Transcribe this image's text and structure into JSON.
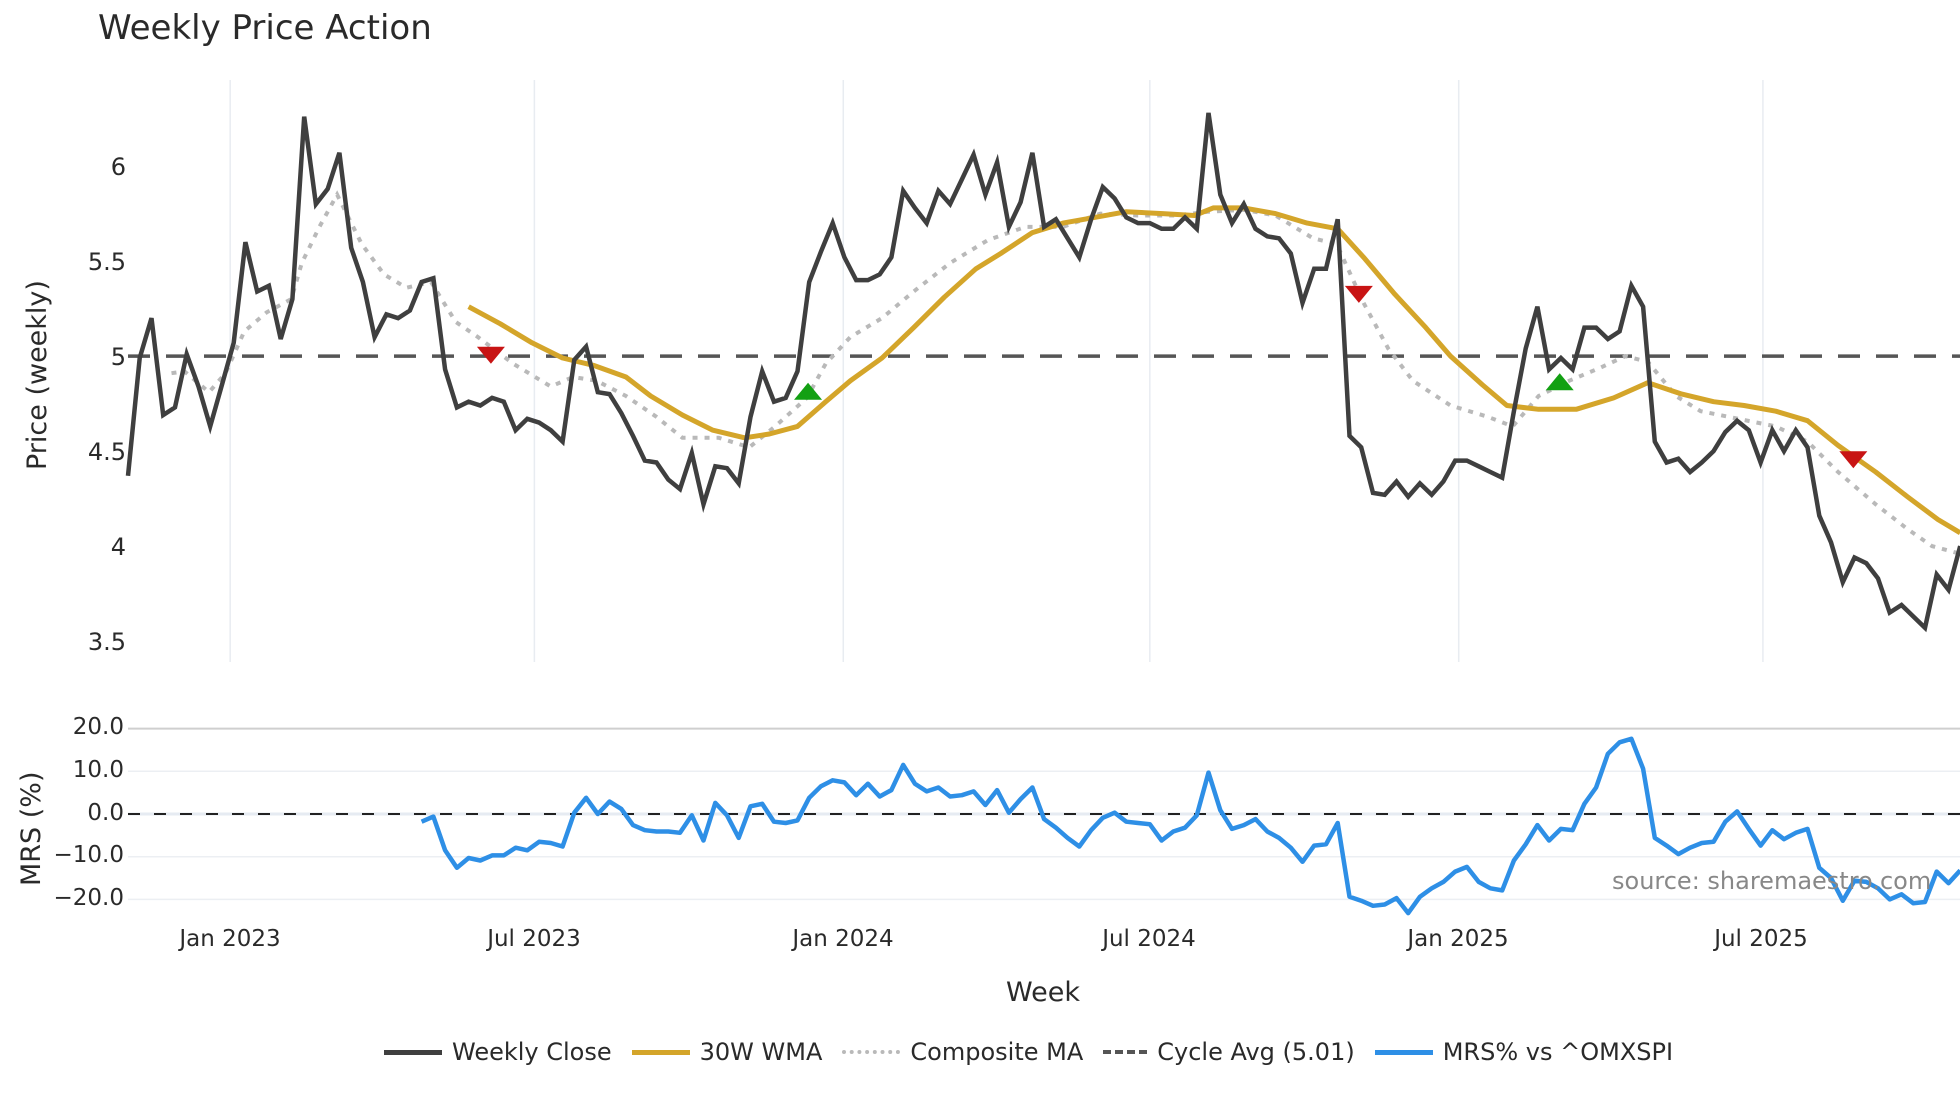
{
  "chart_data": {
    "type": "line",
    "title": "Weekly Price Action",
    "xlabel": "Week",
    "ylabel": "Price (weekly)",
    "ylabel2": "MRS (%)",
    "ylim": [
      3.45,
      6.35
    ],
    "ylim2": [
      -25,
      22
    ],
    "yticks": [
      "6",
      "5.5",
      "5",
      "4.5",
      "4",
      "3.5"
    ],
    "yticks2": [
      "20.0",
      "10.0",
      "0.0",
      "−10.0",
      "−20.0"
    ],
    "xticks": [
      "Jan 2023",
      "Jul 2023",
      "Jan 2024",
      "Jul 2024",
      "Jan 2025",
      "Jul 2025"
    ],
    "xtick_week_index": [
      8.7,
      34.6,
      60.9,
      87.0,
      113.3,
      139.2
    ],
    "cycle_avg": 5.01,
    "series": [
      {
        "name": "Weekly Close",
        "color": "#3f3f3f",
        "start_week": 0,
        "values": [
          4.38,
          5.0,
          5.21,
          4.7,
          4.74,
          5.02,
          4.85,
          4.64,
          4.86,
          5.08,
          5.61,
          5.35,
          5.38,
          5.1,
          5.31,
          6.27,
          5.81,
          5.89,
          6.08,
          5.58,
          5.4,
          5.11,
          5.23,
          5.21,
          5.25,
          5.4,
          5.42,
          4.94,
          4.74,
          4.77,
          4.75,
          4.79,
          4.77,
          4.62,
          4.68,
          4.66,
          4.62,
          4.56,
          4.99,
          5.06,
          4.82,
          4.81,
          4.71,
          4.59,
          4.46,
          4.45,
          4.36,
          4.31,
          4.5,
          4.23,
          4.43,
          4.42,
          4.34,
          4.69,
          4.93,
          4.77,
          4.79,
          4.93,
          5.4,
          5.56,
          5.71,
          5.53,
          5.41,
          5.41,
          5.44,
          5.53,
          5.88,
          5.79,
          5.71,
          5.88,
          5.81,
          5.94,
          6.07,
          5.86,
          6.03,
          5.69,
          5.82,
          6.08,
          5.69,
          5.73,
          5.63,
          5.53,
          5.73,
          5.9,
          5.84,
          5.74,
          5.71,
          5.71,
          5.68,
          5.68,
          5.74,
          5.68,
          6.29,
          5.86,
          5.71,
          5.81,
          5.68,
          5.64,
          5.63,
          5.55,
          5.29,
          5.47,
          5.47,
          5.73,
          4.59,
          4.53,
          4.29,
          4.28,
          4.35,
          4.27,
          4.34,
          4.28,
          4.35,
          4.46,
          4.46,
          4.43,
          4.4,
          4.37,
          4.72,
          5.05,
          5.27,
          4.94,
          5.0,
          4.94,
          5.16,
          5.16,
          5.1,
          5.14,
          5.38,
          5.27,
          4.56,
          4.45,
          4.47,
          4.4,
          4.45,
          4.51,
          4.61,
          4.67,
          4.62,
          4.45,
          4.62,
          4.51,
          4.62,
          4.53,
          4.17,
          4.03,
          3.82,
          3.95,
          3.92,
          3.84,
          3.66,
          3.7,
          3.64,
          3.58,
          3.86,
          3.78,
          4.01
        ]
      },
      {
        "name": "30W WMA",
        "color": "#d4a52a",
        "points": [
          [
            29,
            5.27
          ],
          [
            31.7,
            5.18
          ],
          [
            34.4,
            5.08
          ],
          [
            37.0,
            5.0
          ],
          [
            39.7,
            4.96
          ],
          [
            42.4,
            4.9
          ],
          [
            44.5,
            4.8
          ],
          [
            47.2,
            4.7
          ],
          [
            49.8,
            4.62
          ],
          [
            52.5,
            4.58
          ],
          [
            54.6,
            4.6
          ],
          [
            57.0,
            4.64
          ],
          [
            59.4,
            4.77
          ],
          [
            61.5,
            4.88
          ],
          [
            64.2,
            5.0
          ],
          [
            66.9,
            5.16
          ],
          [
            69.5,
            5.32
          ],
          [
            72.2,
            5.47
          ],
          [
            74.3,
            5.55
          ],
          [
            77.0,
            5.66
          ],
          [
            79.6,
            5.71
          ],
          [
            82.3,
            5.74
          ],
          [
            85.0,
            5.77
          ],
          [
            88.1,
            5.76
          ],
          [
            90.8,
            5.75
          ],
          [
            92.4,
            5.79
          ],
          [
            95.0,
            5.79
          ],
          [
            97.7,
            5.76
          ],
          [
            100.4,
            5.71
          ],
          [
            103.0,
            5.68
          ],
          [
            105.2,
            5.53
          ],
          [
            107.8,
            5.34
          ],
          [
            110.5,
            5.16
          ],
          [
            112.6,
            5.01
          ],
          [
            115.3,
            4.86
          ],
          [
            117.4,
            4.75
          ],
          [
            120.1,
            4.73
          ],
          [
            123.3,
            4.73
          ],
          [
            126.5,
            4.79
          ],
          [
            129.4,
            4.87
          ],
          [
            132.3,
            4.81
          ],
          [
            135.0,
            4.77
          ],
          [
            137.6,
            4.75
          ],
          [
            140.3,
            4.72
          ],
          [
            143.0,
            4.67
          ],
          [
            145.6,
            4.54
          ],
          [
            148.8,
            4.4
          ],
          [
            151.5,
            4.27
          ],
          [
            154.1,
            4.15
          ],
          [
            156.0,
            4.08
          ]
        ]
      },
      {
        "name": "Composite MA",
        "color": "#b9b9b9",
        "points": [
          [
            3.7,
            4.92
          ],
          [
            4.8,
            4.93
          ],
          [
            6.9,
            4.82
          ],
          [
            8.3,
            4.92
          ],
          [
            9.9,
            5.14
          ],
          [
            11.8,
            5.24
          ],
          [
            13.9,
            5.31
          ],
          [
            14.8,
            5.5
          ],
          [
            16.3,
            5.69
          ],
          [
            17.8,
            5.86
          ],
          [
            19.9,
            5.6
          ],
          [
            21.8,
            5.44
          ],
          [
            23.7,
            5.37
          ],
          [
            25.8,
            5.4
          ],
          [
            27.9,
            5.19
          ],
          [
            29.8,
            5.11
          ],
          [
            32.8,
            4.97
          ],
          [
            36.0,
            4.85
          ],
          [
            37.9,
            4.9
          ],
          [
            39.9,
            4.88
          ],
          [
            42.4,
            4.8
          ],
          [
            45.0,
            4.69
          ],
          [
            47.2,
            4.58
          ],
          [
            50.3,
            4.58
          ],
          [
            52.9,
            4.53
          ],
          [
            55.1,
            4.64
          ],
          [
            57.8,
            4.79
          ],
          [
            59.4,
            4.97
          ],
          [
            61.5,
            5.11
          ],
          [
            64.2,
            5.21
          ],
          [
            66.9,
            5.35
          ],
          [
            70.0,
            5.5
          ],
          [
            73.2,
            5.62
          ],
          [
            76.4,
            5.69
          ],
          [
            79.6,
            5.69
          ],
          [
            82.8,
            5.76
          ],
          [
            86.0,
            5.75
          ],
          [
            89.2,
            5.75
          ],
          [
            92.0,
            5.77
          ],
          [
            95.0,
            5.78
          ],
          [
            97.7,
            5.75
          ],
          [
            100.9,
            5.63
          ],
          [
            102.9,
            5.6
          ],
          [
            105.2,
            5.29
          ],
          [
            107.3,
            5.05
          ],
          [
            109.4,
            4.88
          ],
          [
            112.6,
            4.75
          ],
          [
            115.8,
            4.69
          ],
          [
            117.9,
            4.64
          ],
          [
            120.1,
            4.8
          ],
          [
            122.7,
            4.88
          ],
          [
            125.4,
            4.95
          ],
          [
            127.5,
            5.01
          ],
          [
            129.4,
            4.98
          ],
          [
            131.8,
            4.8
          ],
          [
            133.9,
            4.72
          ],
          [
            137.1,
            4.68
          ],
          [
            140.3,
            4.64
          ],
          [
            143.0,
            4.56
          ],
          [
            145.6,
            4.4
          ],
          [
            148.8,
            4.23
          ],
          [
            151.5,
            4.1
          ],
          [
            153.6,
            4.01
          ],
          [
            156.0,
            3.97
          ]
        ]
      },
      {
        "name": "Cycle Avg (5.01)",
        "color": "#555555",
        "value": 5.01
      },
      {
        "name": "MRS% vs ^OMXSPI",
        "color": "#2e8fe6",
        "start_week": 25,
        "values": [
          -1.8,
          -0.6,
          -8.5,
          -12.6,
          -10.3,
          -10.9,
          -9.7,
          -9.7,
          -7.9,
          -8.5,
          -6.5,
          -6.8,
          -7.6,
          0.3,
          3.8,
          0,
          2.9,
          1.2,
          -2.6,
          -3.8,
          -4.1,
          -4.1,
          -4.4,
          -0.3,
          -6.2,
          2.6,
          -0.3,
          -5.6,
          1.8,
          2.4,
          -1.8,
          -2.1,
          -1.5,
          3.8,
          6.5,
          7.9,
          7.4,
          4.4,
          7.1,
          4.1,
          5.6,
          11.5,
          7.1,
          5.3,
          6.2,
          4.1,
          4.4,
          5.3,
          2.1,
          5.6,
          0.3,
          3.5,
          6.2,
          -1.2,
          -3.2,
          -5.6,
          -7.6,
          -3.8,
          -0.9,
          0.3,
          -1.8,
          -2.1,
          -2.4,
          -6.2,
          -4.1,
          -3.2,
          -0.3,
          9.7,
          0.9,
          -3.5,
          -2.6,
          -1.2,
          -4.1,
          -5.6,
          -7.9,
          -11.2,
          -7.4,
          -7.1,
          -2.1,
          -19.4,
          -20.3,
          -21.5,
          -21.2,
          -19.7,
          -23.2,
          -19.4,
          -17.4,
          -15.9,
          -13.5,
          -12.4,
          -15.9,
          -17.4,
          -17.9,
          -10.9,
          -7.1,
          -2.6,
          -6.2,
          -3.5,
          -3.8,
          2.4,
          6.2,
          14.1,
          16.8,
          17.6,
          10.6,
          -5.6,
          -7.4,
          -9.4,
          -7.9,
          -6.8,
          -6.5,
          -1.8,
          0.6,
          -3.5,
          -7.4,
          -3.8,
          -5.9,
          -4.4,
          -3.5,
          -12.6,
          -15.0,
          -20.3,
          -15.6,
          -15.9,
          -17.4,
          -20.0,
          -18.8,
          -20.9,
          -20.6,
          -13.5,
          -16.2,
          -13.2,
          -11.5
        ]
      }
    ],
    "markers": [
      {
        "type": "sell",
        "shape": "triangle-down",
        "color": "#c81414",
        "week": 30.9,
        "value": 5.02
      },
      {
        "type": "buy",
        "shape": "triangle-up",
        "color": "#13a013",
        "week": 57.9,
        "value": 4.82
      },
      {
        "type": "sell",
        "shape": "triangle-down",
        "color": "#c81414",
        "week": 104.8,
        "value": 5.34
      },
      {
        "type": "buy",
        "shape": "triangle-up",
        "color": "#13a013",
        "week": 121.9,
        "value": 4.87
      },
      {
        "type": "sell",
        "shape": "triangle-down",
        "color": "#c81414",
        "week": 146.9,
        "value": 4.47
      }
    ],
    "legend_position": "bottom",
    "grid": true
  },
  "labels": {
    "title": "Weekly Price Action",
    "ylabel": "Price (weekly)",
    "ylabel2": "MRS (%)",
    "xlabel": "Week",
    "source": "source: sharemaestro.com"
  },
  "legend": [
    {
      "label": "Weekly Close",
      "color": "#3f3f3f",
      "style": "solid"
    },
    {
      "label": "30W WMA",
      "color": "#d4a52a",
      "style": "solid"
    },
    {
      "label": "Composite MA",
      "color": "#b9b9b9",
      "style": "dotted"
    },
    {
      "label": "Cycle Avg (5.01)",
      "color": "#555555",
      "style": "dashed"
    },
    {
      "label": "MRS% vs ^OMXSPI",
      "color": "#2e8fe6",
      "style": "solid"
    }
  ]
}
